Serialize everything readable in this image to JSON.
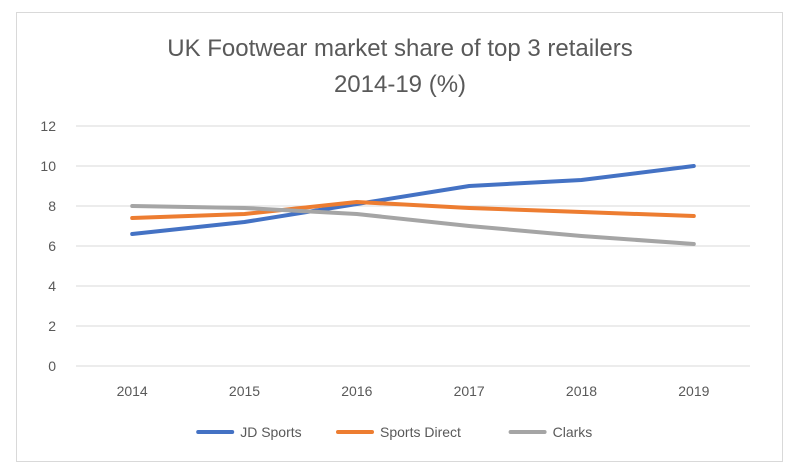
{
  "chart_data": {
    "type": "line",
    "title": "UK Footwear market share of top 3 retailers",
    "subtitle": "2014-19 (%)",
    "xlabel": "",
    "ylabel": "",
    "categories": [
      "2014",
      "2015",
      "2016",
      "2017",
      "2018",
      "2019"
    ],
    "ylim": [
      0,
      12
    ],
    "yticks": [
      "0",
      "2",
      "4",
      "6",
      "8",
      "10",
      "12"
    ],
    "grid": true,
    "legend_position": "bottom",
    "series": [
      {
        "name": "JD Sports",
        "color": "#4472C4",
        "values": [
          6.6,
          7.2,
          8.1,
          9.0,
          9.3,
          10.0
        ]
      },
      {
        "name": "Sports Direct",
        "color": "#ED7D31",
        "values": [
          7.4,
          7.6,
          8.2,
          7.9,
          7.7,
          7.5
        ]
      },
      {
        "name": "Clarks",
        "color": "#A5A5A5",
        "values": [
          8.0,
          7.9,
          7.6,
          7.0,
          6.5,
          6.1
        ]
      }
    ]
  }
}
